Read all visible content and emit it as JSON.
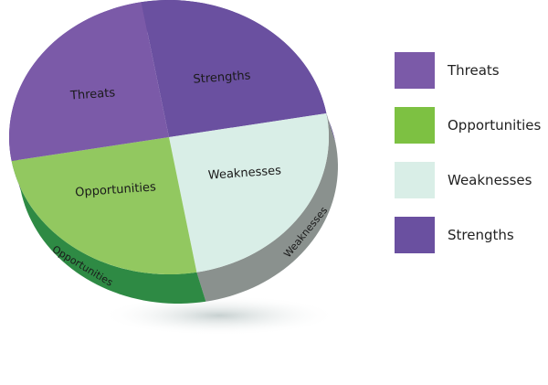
{
  "chart_data": {
    "type": "pie",
    "style": "3d",
    "slices": [
      {
        "label": "Strengths",
        "value": 25,
        "color": "#6a50a0",
        "side_color": "#4e3888"
      },
      {
        "label": "Weaknesses",
        "value": 25,
        "color": "#d9eee7",
        "side_color": "#8a918e"
      },
      {
        "label": "Opportunities",
        "value": 25,
        "color": "#92c860",
        "side_color": "#2e8a44"
      },
      {
        "label": "Threats",
        "value": 25,
        "color": "#7b5aa8",
        "side_color": "#5b3a98"
      }
    ],
    "legend": {
      "position": "right",
      "entries": [
        {
          "label": "Threats",
          "color": "#7b5aa8"
        },
        {
          "label": "Opportunities",
          "color": "#7dc142"
        },
        {
          "label": "Weaknesses",
          "color": "#d9eee7"
        },
        {
          "label": "Strengths",
          "color": "#6a50a0"
        }
      ]
    }
  }
}
